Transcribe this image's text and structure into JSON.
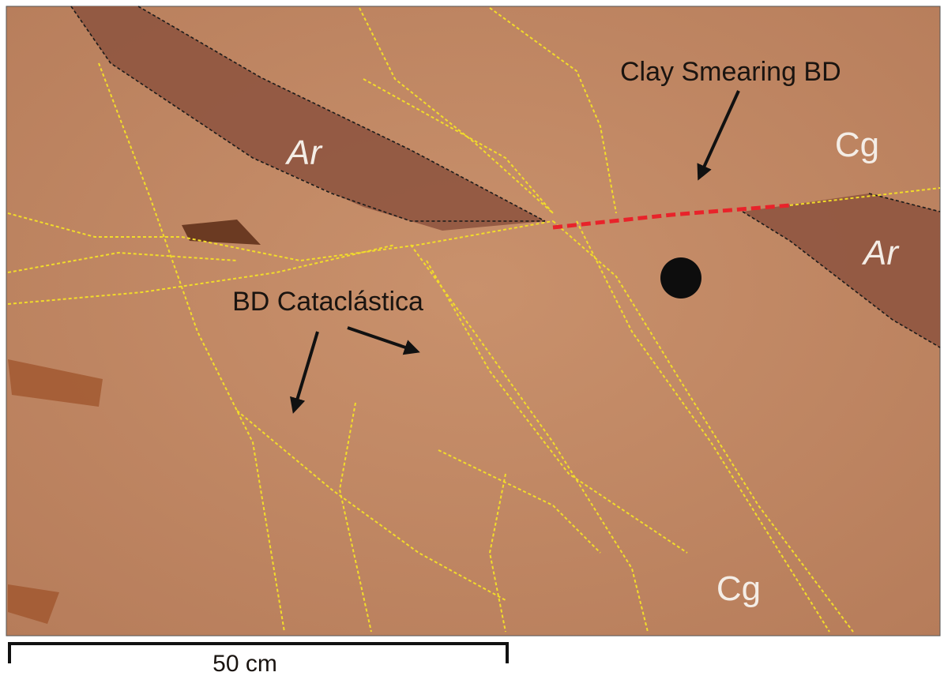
{
  "labels": {
    "clay_smearing": "Clay Smearing BD",
    "cg_top": "Cg",
    "cg_bottom": "Cg",
    "ar_left": "Ar",
    "ar_right": "Ar",
    "cataclastica": "BD Cataclástica"
  },
  "scale_bar": {
    "label": "50 cm"
  }
}
